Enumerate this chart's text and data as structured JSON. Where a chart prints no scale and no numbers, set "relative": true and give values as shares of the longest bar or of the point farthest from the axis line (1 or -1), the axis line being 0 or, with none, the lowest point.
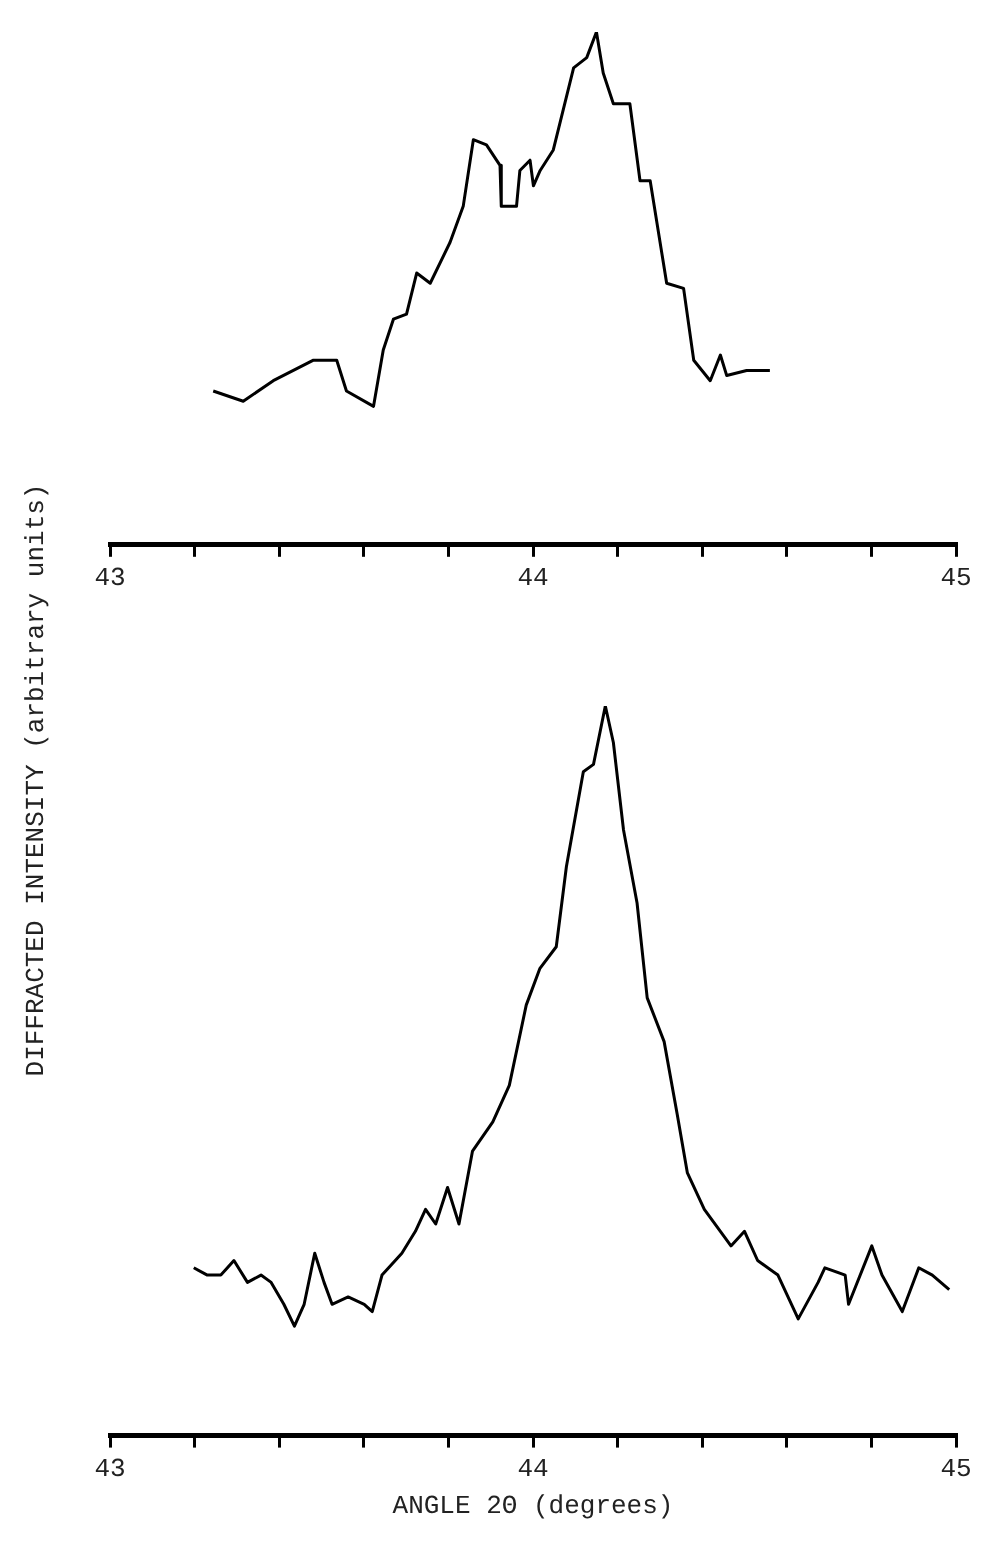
{
  "chart_data": [
    {
      "type": "line",
      "ylabel": "DIFFRACTED INTENSITY (arbitrary units)",
      "relative": true,
      "xlim": [
        43,
        45
      ],
      "xticks": [
        43,
        {
          "value": 43.2,
          "label": null
        },
        {
          "value": 43.4,
          "label": null
        },
        {
          "value": 43.6,
          "label": null
        },
        {
          "value": 43.8,
          "label": null
        },
        44,
        {
          "value": 44.2,
          "label": null
        },
        {
          "value": 44.4,
          "label": null
        },
        {
          "value": 44.6,
          "label": null
        },
        {
          "value": 44.8,
          "label": null
        },
        45
      ],
      "series": [
        {
          "color": "#000000",
          "x": [
            43.244,
            43.315,
            43.386,
            43.481,
            43.536,
            43.559,
            43.623,
            43.646,
            43.67,
            43.701,
            43.725,
            43.757,
            43.804,
            43.835,
            43.859,
            43.89,
            43.922,
            43.925,
            43.961,
            43.969,
            43.993,
            44.001,
            44.017,
            44.048,
            44.096,
            44.127,
            44.15,
            44.166,
            44.19,
            44.229,
            44.253,
            44.277,
            44.316,
            44.356,
            44.38,
            44.419,
            44.443,
            44.458,
            44.505,
            44.56
          ],
          "values": [
            0.3,
            0.28,
            0.32,
            0.36,
            0.36,
            0.3,
            0.27,
            0.38,
            0.44,
            0.45,
            0.53,
            0.51,
            0.59,
            0.66,
            0.79,
            0.78,
            0.74,
            0.66,
            0.66,
            0.73,
            0.75,
            0.7,
            0.73,
            0.77,
            0.93,
            0.95,
            1,
            0.92,
            0.86,
            0.86,
            0.71,
            0.71,
            0.51,
            0.5,
            0.36,
            0.32,
            0.37,
            0.33,
            0.34,
            0.34
          ]
        }
      ]
    },
    {
      "type": "line",
      "xlabel": "ANGLE 2Θ (degrees)",
      "relative": true,
      "xlim": [
        43,
        45
      ],
      "xticks": [
        43,
        {
          "value": 43.2,
          "label": null
        },
        {
          "value": 43.4,
          "label": null
        },
        {
          "value": 43.6,
          "label": null
        },
        {
          "value": 43.8,
          "label": null
        },
        44,
        {
          "value": 44.2,
          "label": null
        },
        {
          "value": 44.4,
          "label": null
        },
        {
          "value": 44.6,
          "label": null
        },
        {
          "value": 44.8,
          "label": null
        },
        45
      ],
      "series": [
        {
          "color": "#000000",
          "x": [
            43.198,
            43.23,
            43.262,
            43.293,
            43.325,
            43.357,
            43.381,
            43.411,
            43.436,
            43.459,
            43.484,
            43.506,
            43.525,
            43.563,
            43.601,
            43.62,
            43.643,
            43.69,
            43.722,
            43.746,
            43.77,
            43.798,
            43.825,
            43.857,
            43.905,
            43.944,
            43.984,
            44.016,
            44.055,
            44.079,
            44.119,
            44.143,
            44.171,
            44.19,
            44.214,
            44.246,
            44.27,
            44.31,
            44.341,
            44.365,
            44.405,
            44.468,
            44.5,
            44.531,
            44.579,
            44.627,
            44.674,
            44.69,
            44.738,
            44.746,
            44.801,
            44.825,
            44.873,
            44.912,
            44.944,
            44.984
          ],
          "values": [
            0.23,
            0.22,
            0.22,
            0.24,
            0.21,
            0.22,
            0.21,
            0.18,
            0.15,
            0.18,
            0.25,
            0.21,
            0.18,
            0.19,
            0.18,
            0.17,
            0.22,
            0.25,
            0.28,
            0.31,
            0.29,
            0.34,
            0.29,
            0.39,
            0.43,
            0.48,
            0.59,
            0.64,
            0.67,
            0.78,
            0.91,
            0.92,
            1,
            0.95,
            0.83,
            0.73,
            0.6,
            0.54,
            0.44,
            0.36,
            0.31,
            0.26,
            0.28,
            0.24,
            0.22,
            0.16,
            0.21,
            0.23,
            0.22,
            0.18,
            0.26,
            0.22,
            0.17,
            0.23,
            0.22,
            0.2
          ]
        }
      ]
    }
  ]
}
